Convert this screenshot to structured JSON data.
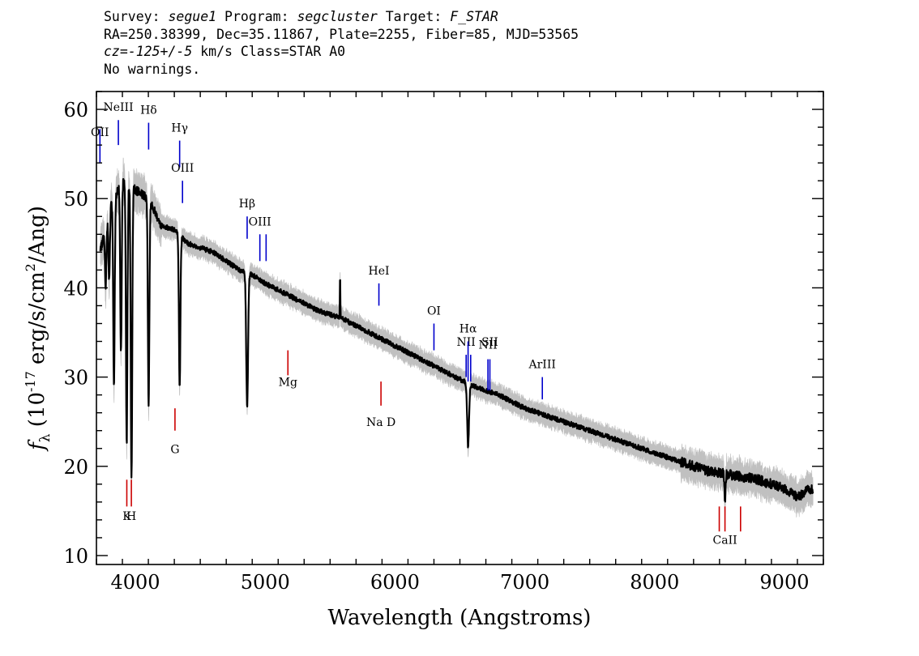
{
  "header": {
    "survey_label": "Survey:",
    "survey": "segue1",
    "program_label": "Program:",
    "program": "segcluster",
    "target_label": "Target:",
    "target": "F_STAR",
    "line2": "RA=250.38399, Dec=35.11867, Plate=2255, Fiber=85, MJD=53565",
    "cz_label": "cz=",
    "cz_value": "-125+/-5",
    "cz_unit": "km/s",
    "class_text": "Class=STAR A0",
    "warnings": "No warnings."
  },
  "chart_data": {
    "type": "line",
    "xlabel": "Wavelength (Angstroms)",
    "ylabel_main": "f",
    "ylabel_sub": "λ",
    "ylabel_rest": " (10",
    "ylabel_exp": "-17",
    "ylabel_units": " erg/s/cm",
    "ylabel_exp2": "2",
    "ylabel_tail": "/Ang)",
    "xlim": [
      3700,
      9300
    ],
    "ylim": [
      9,
      62
    ],
    "xticks": [
      4000,
      5000,
      6000,
      7000,
      8000,
      9000
    ],
    "xtick_labels": [
      "4000",
      "5000",
      "6000",
      "7000",
      "8000",
      "9000"
    ],
    "yticks": [
      10,
      20,
      30,
      40,
      50,
      60
    ],
    "ytick_labels": [
      "10",
      "20",
      "30",
      "40",
      "50",
      "60"
    ],
    "colors": {
      "flux": "#000000",
      "error_band": "#c0c0c0",
      "emission": "#0000cc",
      "absorption": "#cc0000"
    },
    "series": [
      {
        "name": "",
        "continuum_x": [
          3730,
          3800,
          3900,
          4000,
          4100,
          4200,
          4300,
          4400,
          4500,
          4600,
          4700,
          4800,
          4900,
          5000,
          5200,
          5400,
          5600,
          5800,
          6000,
          6200,
          6400,
          6600,
          6800,
          7000,
          7200,
          7400,
          7600,
          7800,
          8000,
          8200,
          8400,
          8600,
          8800,
          9000,
          9100,
          9200
        ],
        "continuum_y": [
          44,
          49,
          52,
          51,
          50,
          47,
          46.5,
          45,
          44.5,
          44,
          43,
          42,
          41.5,
          40.5,
          39,
          37.5,
          36.5,
          35,
          33.5,
          32,
          30.5,
          29,
          28,
          26.5,
          25.5,
          24.5,
          23.5,
          22.5,
          21.5,
          20.5,
          19.5,
          19,
          18.5,
          17.5,
          16.5,
          17.5
        ],
        "absorption_features": [
          {
            "x": 3771,
            "depth": 7
          },
          {
            "x": 3798,
            "depth": 8
          },
          {
            "x": 3835,
            "depth": 21
          },
          {
            "x": 3889,
            "depth": 19
          },
          {
            "x": 3933,
            "depth": 29
          },
          {
            "x": 3970,
            "depth": 33
          },
          {
            "x": 4102,
            "depth": 23
          },
          {
            "x": 4341,
            "depth": 17
          },
          {
            "x": 4861,
            "depth": 15
          },
          {
            "x": 6563,
            "depth": 7
          },
          {
            "x": 8542,
            "depth": 3
          }
        ],
        "spikes": [
          {
            "x": 5577,
            "height": 4.5
          }
        ]
      }
    ],
    "line_labels": [
      {
        "label": "OII",
        "wavelength": 3727,
        "kind": "emission",
        "label_y": 57.0,
        "tick_top": 57.8,
        "tick_bottom": 54.0
      },
      {
        "label": "NeIII",
        "wavelength": 3869,
        "kind": "emission",
        "label_y": 59.8,
        "tick_top": 58.8,
        "tick_bottom": 56.0
      },
      {
        "label": "Hδ",
        "wavelength": 4102,
        "kind": "emission",
        "label_y": 59.5,
        "tick_top": 58.5,
        "tick_bottom": 55.5
      },
      {
        "label": "Hγ",
        "wavelength": 4341,
        "kind": "emission",
        "label_y": 57.5,
        "tick_top": 56.5,
        "tick_bottom": 53.5
      },
      {
        "label": "OIII",
        "wavelength": 4363,
        "kind": "emission",
        "label_y": 53.0,
        "tick_top": 52.0,
        "tick_bottom": 49.5
      },
      {
        "label": "Hβ",
        "wavelength": 4861,
        "kind": "emission",
        "label_y": 49.0,
        "tick_top": 48.0,
        "tick_bottom": 45.5
      },
      {
        "label": "OIII",
        "wavelength": 4959,
        "kind": "emission",
        "label_y": 47.0,
        "tick_top": 46.0,
        "tick_bottom": 43.0
      },
      {
        "label": "",
        "wavelength": 5007,
        "kind": "emission",
        "label_y": 47.0,
        "tick_top": 46.0,
        "tick_bottom": 43.0
      },
      {
        "label": "HeI",
        "wavelength": 5876,
        "kind": "emission",
        "label_y": 41.5,
        "tick_top": 40.5,
        "tick_bottom": 38.0
      },
      {
        "label": "OI",
        "wavelength": 6300,
        "kind": "emission",
        "label_y": 37.0,
        "tick_top": 36.0,
        "tick_bottom": 33.0
      },
      {
        "label": "NII",
        "wavelength": 6548,
        "kind": "emission",
        "label_y": 33.5,
        "tick_top": 32.5,
        "tick_bottom": 30.0
      },
      {
        "label": "Hα",
        "wavelength": 6563,
        "kind": "emission",
        "label_y": 35.0,
        "tick_top": 34.0,
        "tick_bottom": 29.5
      },
      {
        "label": "",
        "wavelength": 6583,
        "kind": "emission",
        "label_y": 33.5,
        "tick_top": 32.5,
        "tick_bottom": 29.5
      },
      {
        "label": "NII",
        "wavelength": 6716,
        "kind": "emission",
        "label_y": 33.2,
        "tick_top": 32.0,
        "tick_bottom": 28.5
      },
      {
        "label": "SII",
        "wavelength": 6731,
        "kind": "emission",
        "label_y": 33.5,
        "tick_top": 32.0,
        "tick_bottom": 28.5
      },
      {
        "label": "ArIII",
        "wavelength": 7135,
        "kind": "emission",
        "label_y": 31.0,
        "tick_top": 30.0,
        "tick_bottom": 27.5
      },
      {
        "label": "Mg",
        "wavelength": 5175,
        "kind": "absorption",
        "label_y": 29.0,
        "tick_top": 33.0,
        "tick_bottom": 30.2
      },
      {
        "label": "Na D",
        "wavelength": 5892,
        "kind": "absorption",
        "label_y": 24.5,
        "tick_top": 29.5,
        "tick_bottom": 26.8
      },
      {
        "label": "G",
        "wavelength": 4305,
        "kind": "absorption",
        "label_y": 21.5,
        "tick_top": 26.5,
        "tick_bottom": 24.0
      },
      {
        "label": "K",
        "wavelength": 3934,
        "kind": "absorption",
        "label_y": 14.0,
        "tick_top": 18.5,
        "tick_bottom": 15.5
      },
      {
        "label": "H",
        "wavelength": 3969,
        "kind": "absorption",
        "label_y": 14.0,
        "tick_top": 18.5,
        "tick_bottom": 15.5
      },
      {
        "label": "",
        "wavelength": 8498,
        "kind": "absorption",
        "label_y": 11.3,
        "tick_top": 15.5,
        "tick_bottom": 12.7
      },
      {
        "label": "CaII",
        "wavelength": 8542,
        "kind": "absorption",
        "label_y": 11.3,
        "tick_top": 15.5,
        "tick_bottom": 12.7
      },
      {
        "label": "",
        "wavelength": 8662,
        "kind": "absorption",
        "label_y": 11.3,
        "tick_top": 15.5,
        "tick_bottom": 12.7
      }
    ]
  }
}
